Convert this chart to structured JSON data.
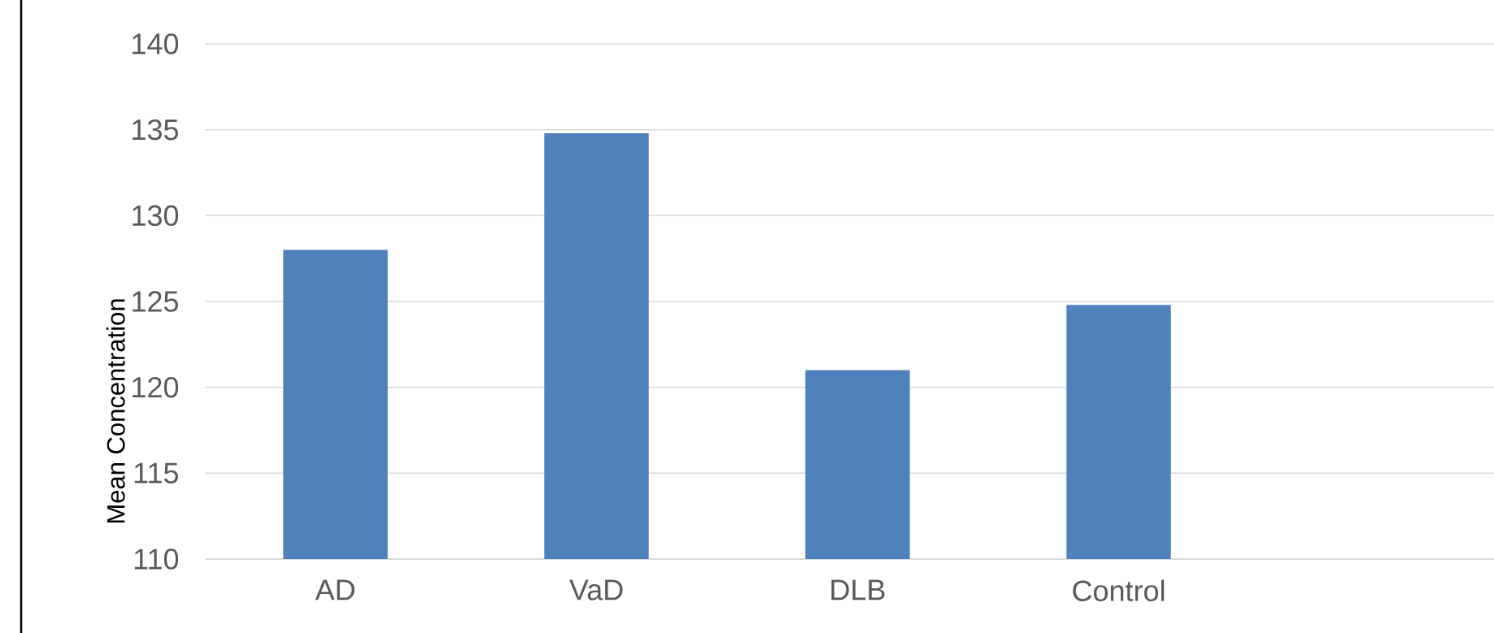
{
  "chart_data": {
    "type": "bar",
    "ylabel": "Mean Concentration",
    "categories": [
      "AD",
      "VaD",
      "DLB",
      "Control",
      null
    ],
    "values": [
      128.0,
      134.8,
      121.0,
      124.8,
      null
    ],
    "color": "#4f81bd",
    "ylim": [
      110,
      140
    ],
    "yticks": [
      110,
      115,
      120,
      125,
      130,
      135,
      140
    ],
    "grid": "y"
  }
}
